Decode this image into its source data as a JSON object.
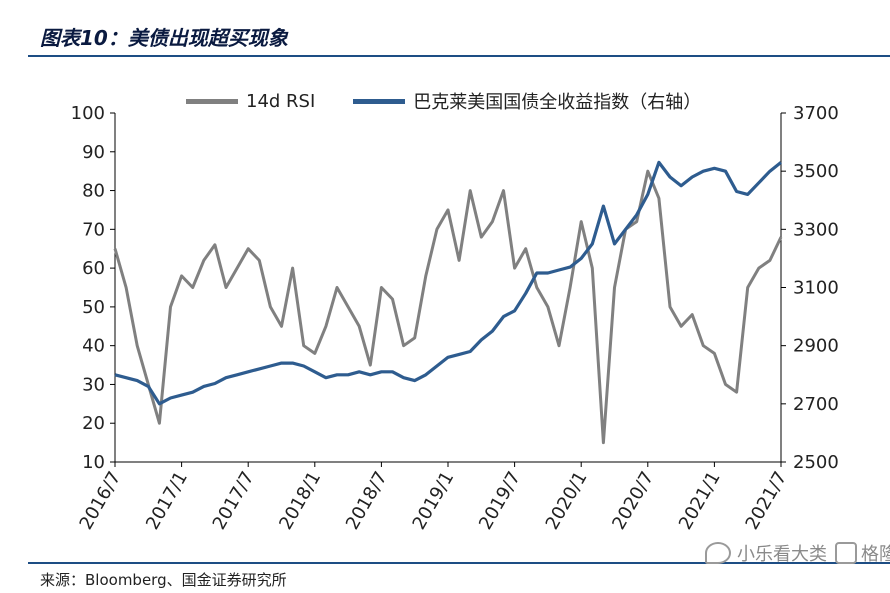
{
  "header": {
    "title": "图表10：美债出现超买现象"
  },
  "legend": {
    "items": [
      {
        "label": "14d RSI",
        "color": "#808080"
      },
      {
        "label": "巴克莱美国国债全收益指数（右轴）",
        "color": "#2e5c8f"
      }
    ]
  },
  "footer": {
    "source": "来源：Bloomberg、国金证券研究所"
  },
  "watermark": {
    "brand": "小乐看大类",
    "extra": "格隆汇"
  },
  "chart_data": {
    "type": "line",
    "title": "",
    "x": [
      "2016/7",
      "2016/8",
      "2016/9",
      "2016/10",
      "2016/11",
      "2016/12",
      "2017/1",
      "2017/2",
      "2017/3",
      "2017/4",
      "2017/5",
      "2017/6",
      "2017/7",
      "2017/8",
      "2017/9",
      "2017/10",
      "2017/11",
      "2017/12",
      "2018/1",
      "2018/2",
      "2018/3",
      "2018/4",
      "2018/5",
      "2018/6",
      "2018/7",
      "2018/8",
      "2018/9",
      "2018/10",
      "2018/11",
      "2018/12",
      "2019/1",
      "2019/2",
      "2019/3",
      "2019/4",
      "2019/5",
      "2019/6",
      "2019/7",
      "2019/8",
      "2019/9",
      "2019/10",
      "2019/11",
      "2019/12",
      "2020/1",
      "2020/2",
      "2020/3",
      "2020/4",
      "2020/5",
      "2020/6",
      "2020/7",
      "2020/8",
      "2020/9",
      "2020/10",
      "2020/11",
      "2020/12",
      "2021/1",
      "2021/2",
      "2021/3",
      "2021/4",
      "2021/5",
      "2021/6",
      "2021/7"
    ],
    "x_ticks": [
      "2016/7",
      "2017/1",
      "2017/7",
      "2018/1",
      "2018/7",
      "2019/1",
      "2019/7",
      "2020/1",
      "2020/7",
      "2021/1",
      "2021/7"
    ],
    "y_left": {
      "ticks": [
        10,
        20,
        30,
        40,
        50,
        60,
        70,
        80,
        90,
        100
      ],
      "range": [
        10,
        100
      ]
    },
    "y_right": {
      "ticks": [
        2500,
        2700,
        2900,
        3100,
        3300,
        3500,
        3700
      ],
      "range": [
        2500,
        3700
      ]
    },
    "series": [
      {
        "name": "14d RSI",
        "axis": "left",
        "color": "#808080",
        "values": [
          65,
          55,
          40,
          30,
          20,
          50,
          58,
          55,
          62,
          66,
          55,
          60,
          65,
          62,
          50,
          45,
          60,
          40,
          38,
          45,
          55,
          50,
          45,
          35,
          55,
          52,
          40,
          42,
          58,
          70,
          75,
          62,
          80,
          68,
          72,
          80,
          60,
          65,
          55,
          50,
          40,
          55,
          72,
          60,
          15,
          55,
          70,
          72,
          85,
          78,
          50,
          45,
          48,
          40,
          38,
          30,
          28,
          55,
          60,
          62,
          68
        ]
      },
      {
        "name": "巴克莱美国国债全收益指数（右轴）",
        "axis": "right",
        "color": "#2e5c8f",
        "values": [
          2800,
          2790,
          2780,
          2760,
          2700,
          2720,
          2730,
          2740,
          2760,
          2770,
          2790,
          2800,
          2810,
          2820,
          2830,
          2840,
          2840,
          2830,
          2810,
          2790,
          2800,
          2800,
          2810,
          2800,
          2810,
          2810,
          2790,
          2780,
          2800,
          2830,
          2860,
          2870,
          2880,
          2920,
          2950,
          3000,
          3020,
          3080,
          3150,
          3150,
          3160,
          3170,
          3200,
          3250,
          3380,
          3250,
          3300,
          3350,
          3420,
          3530,
          3480,
          3450,
          3480,
          3500,
          3510,
          3500,
          3430,
          3420,
          3460,
          3500,
          3530
        ]
      }
    ]
  }
}
